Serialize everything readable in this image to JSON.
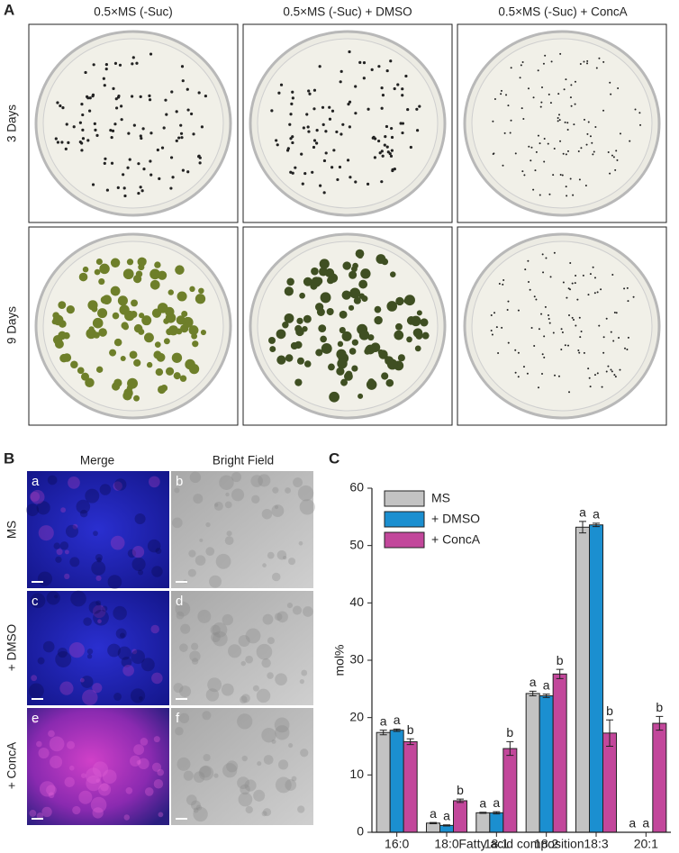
{
  "panel_a": {
    "label": "A",
    "columns": [
      "0.5×MS (-Suc)",
      "0.5×MS (-Suc) + DMSO",
      "0.5×MS (-Suc) + ConcA"
    ],
    "rows": [
      "3 Days",
      "9 Days"
    ]
  },
  "panel_b": {
    "label": "B",
    "columns": [
      "Merge",
      "Bright Field"
    ],
    "rows": [
      "MS",
      "+ DMSO",
      "+ ConcA"
    ],
    "image_labels": [
      [
        "a",
        "b"
      ],
      [
        "c",
        "d"
      ],
      [
        "e",
        "f"
      ]
    ]
  },
  "panel_c": {
    "label": "C"
  },
  "chart_data": {
    "type": "bar",
    "ylabel": "mol%",
    "xlabel": "Fatty acid composition",
    "categories": [
      "16:0",
      "18:0",
      "18:1",
      "18:2",
      "18:3",
      "20:1"
    ],
    "series": [
      {
        "name": "MS",
        "color": "#c3c3c3",
        "values": [
          17.4,
          1.6,
          3.4,
          24.2,
          53.2,
          0
        ],
        "errors": [
          0.4,
          0.1,
          0.1,
          0.4,
          1.0,
          0
        ],
        "letters": [
          "a",
          "a",
          "a",
          "a",
          "a",
          "a"
        ]
      },
      {
        "name": "+ DMSO",
        "color": "#1b8fd0",
        "values": [
          17.8,
          1.2,
          3.4,
          23.8,
          53.6,
          0
        ],
        "errors": [
          0.2,
          0.1,
          0.2,
          0.3,
          0.3,
          0
        ],
        "letters": [
          "a",
          "a",
          "a",
          "a",
          "a",
          "a"
        ]
      },
      {
        "name": "+ ConcA",
        "color": "#c2479b",
        "values": [
          15.8,
          5.5,
          14.6,
          27.6,
          17.3,
          19.0
        ],
        "errors": [
          0.5,
          0.3,
          1.2,
          0.8,
          2.3,
          1.2
        ],
        "letters": [
          "b",
          "b",
          "b",
          "b",
          "b",
          "b"
        ]
      }
    ],
    "ylim": [
      0,
      60
    ],
    "yticks": [
      0,
      10,
      20,
      30,
      40,
      50,
      60
    ],
    "legend": "upper-left"
  }
}
